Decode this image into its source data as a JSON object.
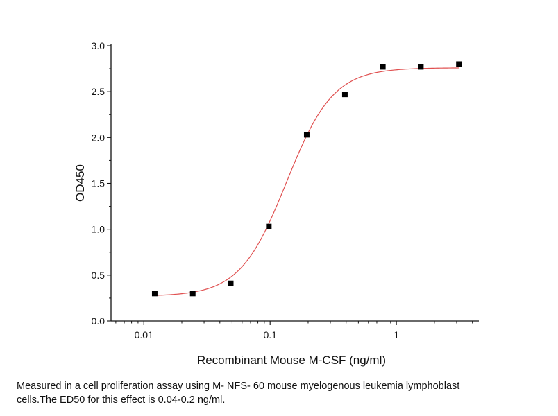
{
  "chart_data": {
    "type": "scatter",
    "title": "",
    "xlabel": "Recombinant Mouse M-CSF (ng/ml)",
    "ylabel": "OD450",
    "x_scale": "log",
    "xlim": [
      0.0055,
      4.5
    ],
    "ylim": [
      0.0,
      3.0
    ],
    "x_ticks": [
      0.01,
      0.1,
      1
    ],
    "x_tick_labels": [
      "0.01",
      "0.1",
      "1"
    ],
    "y_ticks": [
      0.0,
      0.5,
      1.0,
      1.5,
      2.0,
      2.5,
      3.0
    ],
    "y_tick_labels": [
      "0.0",
      "0.5",
      "1.0",
      "1.5",
      "2.0",
      "2.5",
      "3.0"
    ],
    "grid": false,
    "legend": "none",
    "series": [
      {
        "x": [
          0.0122,
          0.0244,
          0.0488,
          0.0977,
          0.195,
          0.391,
          0.781,
          1.5625,
          3.125
        ],
        "values": [
          0.3,
          0.3,
          0.41,
          1.03,
          2.03,
          2.47,
          2.77,
          2.77,
          2.8
        ],
        "marker": "square",
        "color": "#000000"
      }
    ],
    "fit_curve": {
      "model": "4PL",
      "bottom": 0.27,
      "top": 2.76,
      "ec50": 0.135,
      "hill": 2.35,
      "color": "#e05050"
    }
  },
  "caption": {
    "line1": "Measured in a cell proliferation assay using M- NFS- 60 mouse myelogenous leukemia lymphoblast",
    "line2": "cells.The ED50 for this effect is 0.04-0.2 ng/ml."
  }
}
